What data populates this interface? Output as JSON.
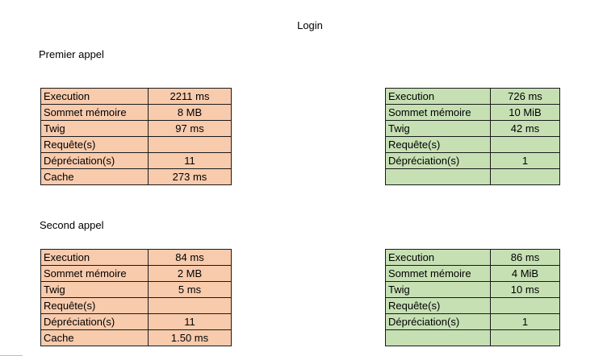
{
  "title": "Login",
  "sections": [
    {
      "label": "Premier appel",
      "left_table": [
        {
          "label": "Execution",
          "value": "2211 ms"
        },
        {
          "label": "Sommet mémoire",
          "value": "8 MB"
        },
        {
          "label": "Twig",
          "value": "97 ms"
        },
        {
          "label": "Requête(s)",
          "value": ""
        },
        {
          "label": "Dépréciation(s)",
          "value": "11"
        },
        {
          "label": "Cache",
          "value": "273 ms"
        }
      ],
      "right_table": [
        {
          "label": "Execution",
          "value": "726 ms"
        },
        {
          "label": "Sommet mémoire",
          "value": "10 MiB"
        },
        {
          "label": "Twig",
          "value": "42 ms"
        },
        {
          "label": "Requête(s)",
          "value": ""
        },
        {
          "label": "Dépréciation(s)",
          "value": "1"
        },
        {
          "label": "",
          "value": ""
        }
      ]
    },
    {
      "label": "Second appel",
      "left_table": [
        {
          "label": "Execution",
          "value": "84 ms"
        },
        {
          "label": "Sommet mémoire",
          "value": "2 MB"
        },
        {
          "label": "Twig",
          "value": "5 ms"
        },
        {
          "label": "Requête(s)",
          "value": ""
        },
        {
          "label": "Dépréciation(s)",
          "value": "11"
        },
        {
          "label": "Cache",
          "value": "1.50 ms"
        }
      ],
      "right_table": [
        {
          "label": "Execution",
          "value": "86 ms"
        },
        {
          "label": "Sommet mémoire",
          "value": "4 MiB"
        },
        {
          "label": "Twig",
          "value": "10 ms"
        },
        {
          "label": "Requête(s)",
          "value": ""
        },
        {
          "label": "Dépréciation(s)",
          "value": "1"
        },
        {
          "label": "",
          "value": ""
        }
      ]
    }
  ],
  "colors": {
    "left_fill": "#f8cbad",
    "right_fill": "#c6e0b4",
    "border": "#1a1a1a"
  }
}
